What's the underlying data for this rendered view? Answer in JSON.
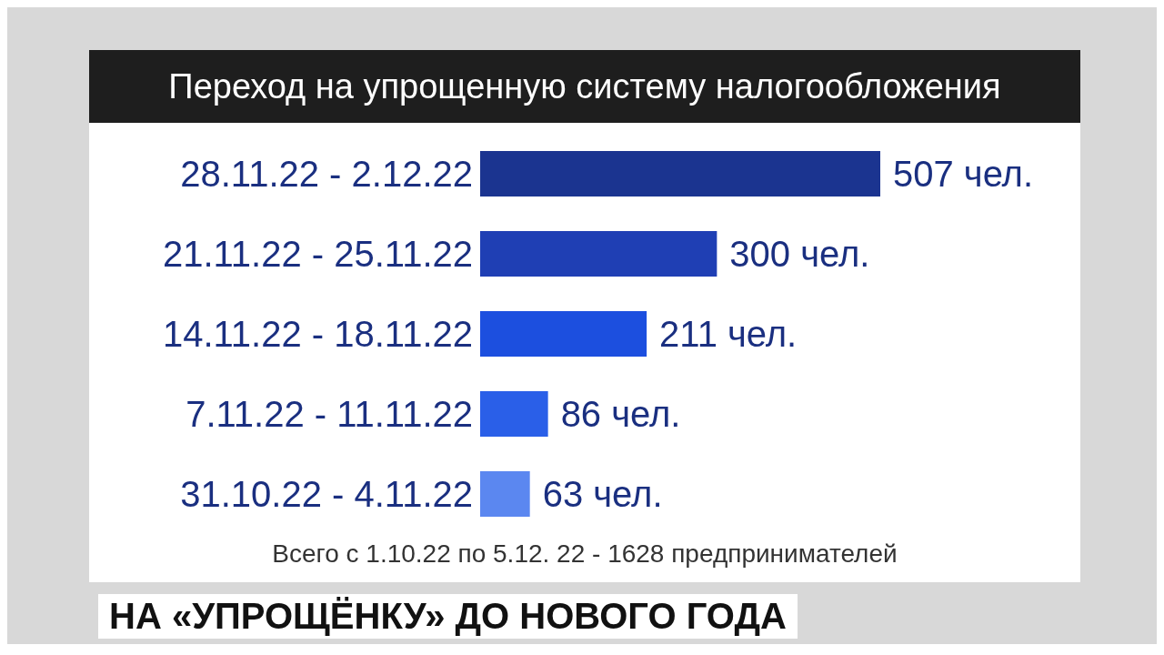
{
  "chart_data": {
    "type": "bar",
    "orientation": "horizontal",
    "title": "Переход на упрощенную систему налогообложения",
    "categories": [
      "28.11.22 - 2.12.22",
      "21.11.22 - 25.11.22",
      "14.11.22 - 18.11.22",
      "7.11.22 - 11.11.22",
      "31.10.22 - 4.11.22"
    ],
    "values": [
      507,
      300,
      211,
      86,
      63
    ],
    "colors": [
      "#1b3490",
      "#1f3fb4",
      "#1c4fdf",
      "#2a5fe8",
      "#5b87f0"
    ],
    "value_labels": [
      "507 чел.",
      "300 чел.",
      "211 чел.",
      "86 чел.",
      "63 чел."
    ],
    "annotations": [
      "Всего с 1.10.22 по 5.12. 22 -   1628 предпринимателей",
      "НА «УПРОЩЁНКУ» ДО НОВОГО ГОДА"
    ]
  }
}
